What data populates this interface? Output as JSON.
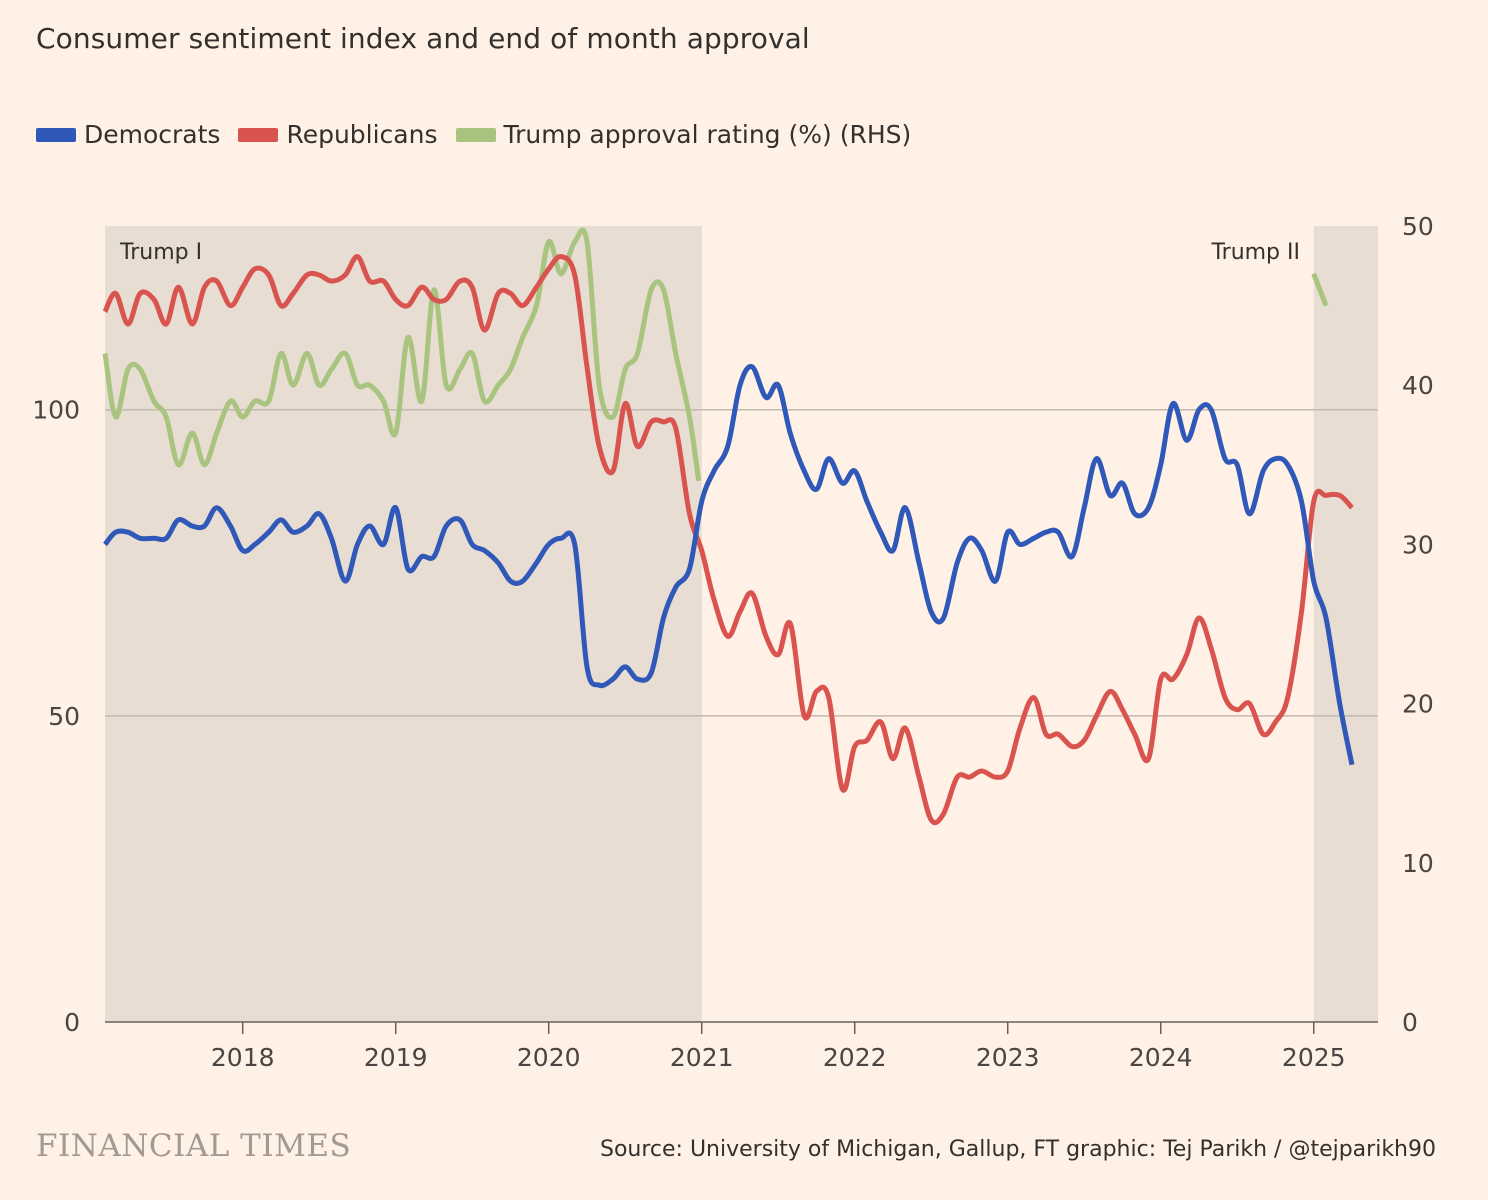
{
  "title": "Consumer sentiment index and end of month approval",
  "legend": [
    {
      "label": "Democrats",
      "color": "#2f58b8"
    },
    {
      "label": "Republicans",
      "color": "#d9534f"
    },
    {
      "label": "Trump approval rating (%) (RHS)",
      "color": "#a9c47f"
    }
  ],
  "footer": {
    "brand": "FINANCIAL TIMES",
    "source": "Source: University of Michigan, Gallup, FT graphic: Tej Parikh / @tejparikh90"
  },
  "colors": {
    "background": "#fff1e5",
    "band": "#e7ddd3",
    "grid": "#c2b9b0",
    "axis": "#66605c"
  },
  "chart_data": {
    "type": "line",
    "x_ticks": [
      2018,
      2019,
      2020,
      2021,
      2022,
      2023,
      2024,
      2025
    ],
    "xlim": [
      2017.1,
      2025.42
    ],
    "y_left": {
      "ticks": [
        0,
        50,
        100
      ],
      "ylim": [
        0,
        130
      ]
    },
    "y_right": {
      "ticks": [
        0,
        10,
        20,
        30,
        40,
        50
      ],
      "ylim": [
        0,
        50
      ]
    },
    "bands": [
      {
        "label": "Trump I",
        "start": 2017.1,
        "end": 2021.0
      },
      {
        "label": "Trump II",
        "start": 2025.0,
        "end": 2025.42
      }
    ],
    "series": [
      {
        "name": "Democrats",
        "axis": "left",
        "color": "#2f58b8",
        "points": [
          [
            2017.1,
            78
          ],
          [
            2017.17,
            80
          ],
          [
            2017.25,
            80
          ],
          [
            2017.33,
            79
          ],
          [
            2017.42,
            79
          ],
          [
            2017.5,
            79
          ],
          [
            2017.58,
            82
          ],
          [
            2017.67,
            81
          ],
          [
            2017.75,
            81
          ],
          [
            2017.83,
            84
          ],
          [
            2017.92,
            81
          ],
          [
            2018.0,
            77
          ],
          [
            2018.08,
            78
          ],
          [
            2018.17,
            80
          ],
          [
            2018.25,
            82
          ],
          [
            2018.33,
            80
          ],
          [
            2018.42,
            81
          ],
          [
            2018.5,
            83
          ],
          [
            2018.58,
            79
          ],
          [
            2018.67,
            72
          ],
          [
            2018.75,
            78
          ],
          [
            2018.83,
            81
          ],
          [
            2018.92,
            78
          ],
          [
            2019.0,
            84
          ],
          [
            2019.08,
            74
          ],
          [
            2019.17,
            76
          ],
          [
            2019.25,
            76
          ],
          [
            2019.33,
            81
          ],
          [
            2019.42,
            82
          ],
          [
            2019.5,
            78
          ],
          [
            2019.58,
            77
          ],
          [
            2019.67,
            75
          ],
          [
            2019.75,
            72
          ],
          [
            2019.83,
            72
          ],
          [
            2019.92,
            75
          ],
          [
            2020.0,
            78
          ],
          [
            2020.08,
            79
          ],
          [
            2020.17,
            78
          ],
          [
            2020.25,
            58
          ],
          [
            2020.33,
            55
          ],
          [
            2020.42,
            56
          ],
          [
            2020.5,
            58
          ],
          [
            2020.58,
            56
          ],
          [
            2020.67,
            57
          ],
          [
            2020.75,
            66
          ],
          [
            2020.83,
            71
          ],
          [
            2020.92,
            74
          ],
          [
            2021.0,
            85
          ],
          [
            2021.08,
            90
          ],
          [
            2021.17,
            94
          ],
          [
            2021.25,
            104
          ],
          [
            2021.33,
            107
          ],
          [
            2021.42,
            102
          ],
          [
            2021.5,
            104
          ],
          [
            2021.58,
            96
          ],
          [
            2021.67,
            90
          ],
          [
            2021.75,
            87
          ],
          [
            2021.83,
            92
          ],
          [
            2021.92,
            88
          ],
          [
            2022.0,
            90
          ],
          [
            2022.08,
            85
          ],
          [
            2022.17,
            80
          ],
          [
            2022.25,
            77
          ],
          [
            2022.33,
            84
          ],
          [
            2022.42,
            75
          ],
          [
            2022.5,
            67
          ],
          [
            2022.58,
            66
          ],
          [
            2022.67,
            75
          ],
          [
            2022.75,
            79
          ],
          [
            2022.83,
            77
          ],
          [
            2022.92,
            72
          ],
          [
            2023.0,
            80
          ],
          [
            2023.08,
            78
          ],
          [
            2023.17,
            79
          ],
          [
            2023.25,
            80
          ],
          [
            2023.33,
            80
          ],
          [
            2023.42,
            76
          ],
          [
            2023.5,
            84
          ],
          [
            2023.58,
            92
          ],
          [
            2023.67,
            86
          ],
          [
            2023.75,
            88
          ],
          [
            2023.83,
            83
          ],
          [
            2023.92,
            84
          ],
          [
            2024.0,
            91
          ],
          [
            2024.08,
            101
          ],
          [
            2024.17,
            95
          ],
          [
            2024.25,
            100
          ],
          [
            2024.33,
            100
          ],
          [
            2024.42,
            92
          ],
          [
            2024.5,
            91
          ],
          [
            2024.58,
            83
          ],
          [
            2024.67,
            90
          ],
          [
            2024.75,
            92
          ],
          [
            2024.83,
            91
          ],
          [
            2024.92,
            85
          ],
          [
            2025.0,
            72
          ],
          [
            2025.08,
            66
          ],
          [
            2025.17,
            52
          ],
          [
            2025.25,
            42
          ]
        ]
      },
      {
        "name": "Republicans",
        "axis": "left",
        "color": "#d9534f",
        "points": [
          [
            2017.1,
            116
          ],
          [
            2017.17,
            119
          ],
          [
            2017.25,
            114
          ],
          [
            2017.33,
            119
          ],
          [
            2017.42,
            118
          ],
          [
            2017.5,
            114
          ],
          [
            2017.58,
            120
          ],
          [
            2017.67,
            114
          ],
          [
            2017.75,
            120
          ],
          [
            2017.83,
            121
          ],
          [
            2017.92,
            117
          ],
          [
            2018.0,
            120
          ],
          [
            2018.08,
            123
          ],
          [
            2018.17,
            122
          ],
          [
            2018.25,
            117
          ],
          [
            2018.33,
            119
          ],
          [
            2018.42,
            122
          ],
          [
            2018.5,
            122
          ],
          [
            2018.58,
            121
          ],
          [
            2018.67,
            122
          ],
          [
            2018.75,
            125
          ],
          [
            2018.83,
            121
          ],
          [
            2018.92,
            121
          ],
          [
            2019.0,
            118
          ],
          [
            2019.08,
            117
          ],
          [
            2019.17,
            120
          ],
          [
            2019.25,
            118
          ],
          [
            2019.33,
            118
          ],
          [
            2019.42,
            121
          ],
          [
            2019.5,
            120
          ],
          [
            2019.58,
            113
          ],
          [
            2019.67,
            119
          ],
          [
            2019.75,
            119
          ],
          [
            2019.83,
            117
          ],
          [
            2019.92,
            120
          ],
          [
            2020.0,
            123
          ],
          [
            2020.08,
            125
          ],
          [
            2020.17,
            122
          ],
          [
            2020.25,
            107
          ],
          [
            2020.33,
            94
          ],
          [
            2020.42,
            90
          ],
          [
            2020.5,
            101
          ],
          [
            2020.58,
            94
          ],
          [
            2020.67,
            98
          ],
          [
            2020.75,
            98
          ],
          [
            2020.83,
            97
          ],
          [
            2020.92,
            83
          ],
          [
            2021.0,
            77
          ],
          [
            2021.08,
            69
          ],
          [
            2021.17,
            63
          ],
          [
            2021.25,
            67
          ],
          [
            2021.33,
            70
          ],
          [
            2021.42,
            63
          ],
          [
            2021.5,
            60
          ],
          [
            2021.58,
            65
          ],
          [
            2021.67,
            50
          ],
          [
            2021.75,
            54
          ],
          [
            2021.83,
            53
          ],
          [
            2021.92,
            38
          ],
          [
            2022.0,
            45
          ],
          [
            2022.08,
            46
          ],
          [
            2022.17,
            49
          ],
          [
            2022.25,
            43
          ],
          [
            2022.33,
            48
          ],
          [
            2022.42,
            40
          ],
          [
            2022.5,
            33
          ],
          [
            2022.58,
            34
          ],
          [
            2022.67,
            40
          ],
          [
            2022.75,
            40
          ],
          [
            2022.83,
            41
          ],
          [
            2022.92,
            40
          ],
          [
            2023.0,
            41
          ],
          [
            2023.08,
            48
          ],
          [
            2023.17,
            53
          ],
          [
            2023.25,
            47
          ],
          [
            2023.33,
            47
          ],
          [
            2023.42,
            45
          ],
          [
            2023.5,
            46
          ],
          [
            2023.58,
            50
          ],
          [
            2023.67,
            54
          ],
          [
            2023.75,
            51
          ],
          [
            2023.83,
            47
          ],
          [
            2023.92,
            43
          ],
          [
            2024.0,
            56
          ],
          [
            2024.08,
            56
          ],
          [
            2024.17,
            60
          ],
          [
            2024.25,
            66
          ],
          [
            2024.33,
            61
          ],
          [
            2024.42,
            53
          ],
          [
            2024.5,
            51
          ],
          [
            2024.58,
            52
          ],
          [
            2024.67,
            47
          ],
          [
            2024.75,
            49
          ],
          [
            2024.83,
            53
          ],
          [
            2024.92,
            67
          ],
          [
            2025.0,
            85
          ],
          [
            2025.08,
            86
          ],
          [
            2025.17,
            86
          ],
          [
            2025.25,
            84
          ]
        ]
      },
      {
        "name": "Trump approval rating (%) (RHS)",
        "axis": "right",
        "color": "#a9c47f",
        "points": [
          [
            2017.1,
            42
          ],
          [
            2017.17,
            38
          ],
          [
            2017.25,
            41
          ],
          [
            2017.33,
            41
          ],
          [
            2017.42,
            39
          ],
          [
            2017.5,
            38
          ],
          [
            2017.58,
            35
          ],
          [
            2017.67,
            37
          ],
          [
            2017.75,
            35
          ],
          [
            2017.83,
            37
          ],
          [
            2017.92,
            39
          ],
          [
            2018.0,
            38
          ],
          [
            2018.08,
            39
          ],
          [
            2018.17,
            39
          ],
          [
            2018.25,
            42
          ],
          [
            2018.33,
            40
          ],
          [
            2018.42,
            42
          ],
          [
            2018.5,
            40
          ],
          [
            2018.58,
            41
          ],
          [
            2018.67,
            42
          ],
          [
            2018.75,
            40
          ],
          [
            2018.83,
            40
          ],
          [
            2018.92,
            39
          ],
          [
            2019.0,
            37
          ],
          [
            2019.08,
            43
          ],
          [
            2019.17,
            39
          ],
          [
            2019.25,
            46
          ],
          [
            2019.33,
            40
          ],
          [
            2019.42,
            41
          ],
          [
            2019.5,
            42
          ],
          [
            2019.58,
            39
          ],
          [
            2019.67,
            40
          ],
          [
            2019.75,
            41
          ],
          [
            2019.83,
            43
          ],
          [
            2019.92,
            45
          ],
          [
            2020.0,
            49
          ],
          [
            2020.08,
            47
          ],
          [
            2020.17,
            49
          ],
          [
            2020.25,
            49
          ],
          [
            2020.33,
            40
          ],
          [
            2020.42,
            38
          ],
          [
            2020.5,
            41
          ],
          [
            2020.58,
            42
          ],
          [
            2020.67,
            46
          ],
          [
            2020.75,
            46
          ],
          [
            2020.83,
            42
          ],
          [
            2020.92,
            38
          ],
          [
            2020.98,
            34
          ]
        ]
      },
      {
        "name": "Trump approval rating (%) (RHS) 2025",
        "axis": "right",
        "color": "#a9c47f",
        "points": [
          [
            2025.0,
            47
          ],
          [
            2025.08,
            45
          ]
        ]
      }
    ]
  }
}
